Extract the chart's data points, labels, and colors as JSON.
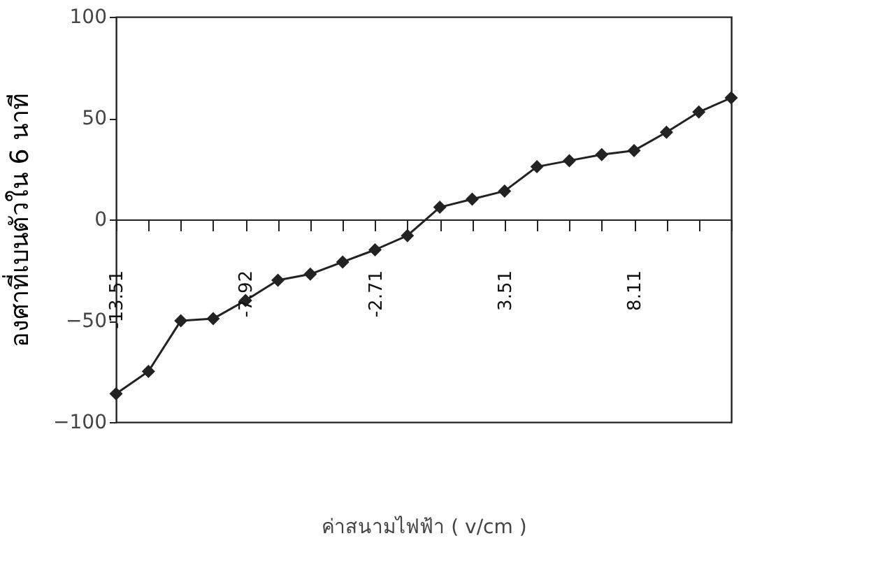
{
  "chart_data": {
    "type": "line",
    "xlabel": "ค่าสนามไฟฟ้า ( v/cm )",
    "ylabel": "องศาที่เบนตัวใน 6 นาที",
    "categories": [
      "-13.51",
      null,
      null,
      null,
      "-7.92",
      null,
      null,
      null,
      "-2.71",
      null,
      null,
      null,
      "3.51",
      null,
      null,
      null,
      "8.11",
      null,
      null,
      null
    ],
    "series": [
      {
        "color": "#222222",
        "values": [
          -86,
          -75,
          -50,
          -49,
          -40,
          -30,
          -27,
          -21,
          -15,
          -8,
          6,
          10,
          14,
          26,
          29,
          32,
          34,
          43,
          53,
          60
        ]
      }
    ],
    "ylim": [
      -100,
      100
    ],
    "yticks": [
      -100,
      -50,
      0,
      50,
      100
    ],
    "marker": "diamond",
    "line_style": "solid"
  }
}
